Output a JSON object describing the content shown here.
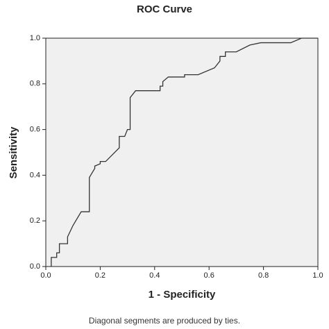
{
  "chart_data": {
    "type": "line",
    "title": "ROC Curve",
    "x_label": "1 - Specificity",
    "y_label": "Sensitivity",
    "footnote": "Diagonal segments are produced by ties.",
    "x": [
      0.02,
      0.02,
      0.04,
      0.04,
      0.05,
      0.05,
      0.08,
      0.08,
      0.1,
      0.13,
      0.16,
      0.16,
      0.18,
      0.18,
      0.2,
      0.2,
      0.22,
      0.27,
      0.27,
      0.29,
      0.3,
      0.31,
      0.31,
      0.33,
      0.42,
      0.42,
      0.43,
      0.43,
      0.45,
      0.51,
      0.51,
      0.56,
      0.62,
      0.64,
      0.64,
      0.66,
      0.66,
      0.7,
      0.75,
      0.79,
      0.9,
      0.94,
      1.0
    ],
    "series": [
      {
        "color": "#333333",
        "values": [
          0,
          0.04,
          0.04,
          0.06,
          0.06,
          0.1,
          0.1,
          0.13,
          0.18,
          0.24,
          0.24,
          0.39,
          0.43,
          0.44,
          0.45,
          0.46,
          0.46,
          0.52,
          0.57,
          0.57,
          0.6,
          0.6,
          0.74,
          0.77,
          0.77,
          0.79,
          0.79,
          0.81,
          0.83,
          0.83,
          0.84,
          0.84,
          0.87,
          0.9,
          0.92,
          0.92,
          0.94,
          0.94,
          0.97,
          0.98,
          0.98,
          1.0,
          1.0
        ]
      }
    ],
    "xlim": [
      0,
      1
    ],
    "ylim": [
      0,
      1
    ],
    "xticks": [
      {
        "value": 0,
        "label": "0.0"
      },
      0.2,
      0.4,
      0.6,
      0.8,
      {
        "value": 1,
        "label": "1.0"
      }
    ],
    "yticks": [
      {
        "value": 0,
        "label": "0.0"
      },
      0.2,
      0.4,
      0.6,
      0.8,
      {
        "value": 1,
        "label": "1.0"
      }
    ],
    "background": "#f0f0f0"
  }
}
